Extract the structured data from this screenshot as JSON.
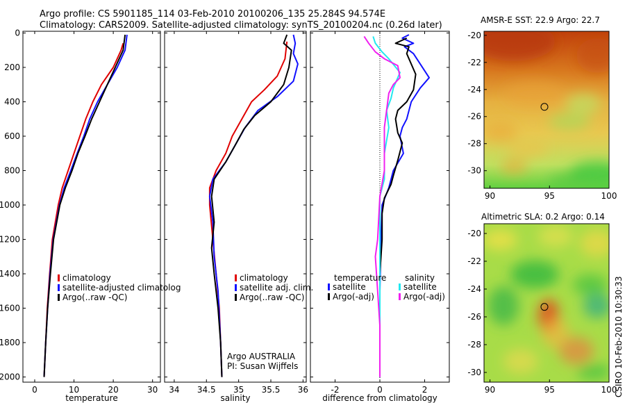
{
  "header": {
    "line1": "Argo profile: CS 5901185_114 03-Feb-2010 20100206_135 25.284S 94.574E",
    "line2": "Climatology: CARS2009. Satellite-adjusted climatology: synTS_20100204.nc (0.26d later)"
  },
  "side_stamp": "CSIRO 10-Feb-2010 10:30:33",
  "colors": {
    "climatology": "#e00000",
    "satellite": "#1010ff",
    "argo": "#000000",
    "sal_satellite": "#22e8f0",
    "sal_argo": "#f020f0"
  },
  "chart_data": [
    {
      "type": "line",
      "xlabel": "temperature",
      "xticks": [
        "0",
        "10",
        "20",
        "30"
      ],
      "yticks": [
        "0",
        "200",
        "400",
        "600",
        "800",
        "1000",
        "1200",
        "1400",
        "1600",
        "1800",
        "2000"
      ],
      "xlim": [
        -3,
        32
      ],
      "ylim": [
        -10,
        2030
      ],
      "legend": [
        "climatology",
        "satellite-adjusted climatolog",
        "Argo(..raw -QC)"
      ],
      "series": [
        {
          "role": "climatology",
          "points": [
            [
              22.5,
              60
            ],
            [
              22,
              100
            ],
            [
              20,
              200
            ],
            [
              17,
              300
            ],
            [
              14.8,
              400
            ],
            [
              13,
              500
            ],
            [
              11.5,
              600
            ],
            [
              10,
              700
            ],
            [
              8.5,
              800
            ],
            [
              7,
              900
            ],
            [
              6,
              1000
            ],
            [
              4.5,
              1200
            ],
            [
              3.8,
              1400
            ],
            [
              3.2,
              1600
            ],
            [
              2.8,
              1800
            ],
            [
              2.4,
              2000
            ]
          ]
        },
        {
          "role": "satellite",
          "points": [
            [
              23.5,
              10
            ],
            [
              23,
              100
            ],
            [
              21,
              200
            ],
            [
              18.5,
              300
            ],
            [
              16,
              400
            ],
            [
              14,
              500
            ],
            [
              12.5,
              600
            ],
            [
              10.8,
              700
            ],
            [
              9.2,
              800
            ],
            [
              7.5,
              900
            ],
            [
              6.3,
              1000
            ],
            [
              4.7,
              1200
            ],
            [
              3.9,
              1400
            ],
            [
              3.3,
              1600
            ],
            [
              2.8,
              1800
            ],
            [
              2.4,
              2000
            ]
          ]
        },
        {
          "role": "argo",
          "points": [
            [
              23,
              10
            ],
            [
              22.5,
              100
            ],
            [
              20.5,
              200
            ],
            [
              18.5,
              300
            ],
            [
              16.5,
              400
            ],
            [
              14.5,
              500
            ],
            [
              12.8,
              600
            ],
            [
              11,
              700
            ],
            [
              9.5,
              800
            ],
            [
              7.8,
              900
            ],
            [
              6.4,
              1000
            ],
            [
              4.8,
              1200
            ],
            [
              4,
              1400
            ],
            [
              3.3,
              1600
            ],
            [
              2.8,
              1800
            ],
            [
              2.4,
              2000
            ]
          ]
        }
      ]
    },
    {
      "type": "line",
      "xlabel": "salinity",
      "xticks": [
        "34",
        "34.5",
        "35",
        "35.5",
        "36"
      ],
      "yticks": [],
      "xlim": [
        33.85,
        36.05
      ],
      "ylim": [
        -10,
        2030
      ],
      "legend": [
        "climatology",
        "satellite adj. clim.",
        "Argo(..raw -QC)"
      ],
      "annotation": [
        "Argo AUSTRALIA",
        "PI: Susan Wijffels"
      ],
      "series": [
        {
          "role": "climatology",
          "points": [
            [
              35.75,
              50
            ],
            [
              35.72,
              150
            ],
            [
              35.6,
              250
            ],
            [
              35.4,
              330
            ],
            [
              35.2,
              400
            ],
            [
              35.05,
              500
            ],
            [
              34.9,
              600
            ],
            [
              34.8,
              700
            ],
            [
              34.65,
              800
            ],
            [
              34.55,
              900
            ],
            [
              34.55,
              1000
            ],
            [
              34.6,
              1200
            ],
            [
              34.65,
              1400
            ],
            [
              34.7,
              1600
            ],
            [
              34.72,
              1800
            ],
            [
              34.74,
              2000
            ]
          ]
        },
        {
          "role": "satellite",
          "points": [
            [
              35.85,
              10
            ],
            [
              35.88,
              60
            ],
            [
              35.85,
              120
            ],
            [
              35.92,
              180
            ],
            [
              35.85,
              280
            ],
            [
              35.6,
              370
            ],
            [
              35.3,
              450
            ],
            [
              35.1,
              550
            ],
            [
              34.95,
              650
            ],
            [
              34.8,
              750
            ],
            [
              34.6,
              850
            ],
            [
              34.55,
              950
            ],
            [
              34.6,
              1100
            ],
            [
              34.62,
              1300
            ],
            [
              34.68,
              1500
            ],
            [
              34.72,
              1800
            ],
            [
              34.74,
              2000
            ]
          ]
        },
        {
          "role": "argo",
          "points": [
            [
              35.75,
              10
            ],
            [
              35.7,
              60
            ],
            [
              35.82,
              100
            ],
            [
              35.78,
              200
            ],
            [
              35.7,
              300
            ],
            [
              35.5,
              400
            ],
            [
              35.25,
              480
            ],
            [
              35.08,
              560
            ],
            [
              34.95,
              650
            ],
            [
              34.8,
              750
            ],
            [
              34.62,
              850
            ],
            [
              34.58,
              950
            ],
            [
              34.62,
              1100
            ],
            [
              34.58,
              1250
            ],
            [
              34.62,
              1400
            ],
            [
              34.68,
              1600
            ],
            [
              34.72,
              1800
            ],
            [
              34.74,
              2000
            ]
          ]
        }
      ]
    },
    {
      "type": "line",
      "xlabel": "difference from climatology",
      "xticks": [
        "-2",
        "0",
        "2"
      ],
      "yticks": [],
      "xlim": [
        -3.1,
        3.1
      ],
      "ylim": [
        -10,
        2030
      ],
      "legend_left_title": "temperature",
      "legend_left": [
        "satellite",
        "Argo(-adj)"
      ],
      "legend_right_title": "salinity",
      "legend_right": [
        "satellite",
        "Argo(-adj)"
      ],
      "series": [
        {
          "role": "temp_satellite",
          "points": [
            [
              1.3,
              10
            ],
            [
              1.0,
              30
            ],
            [
              1.5,
              60
            ],
            [
              1.1,
              80
            ],
            [
              1.5,
              120
            ],
            [
              2.2,
              260
            ],
            [
              1.8,
              320
            ],
            [
              1.4,
              400
            ],
            [
              1.2,
              500
            ],
            [
              1.0,
              550
            ],
            [
              0.9,
              600
            ],
            [
              1.05,
              700
            ],
            [
              0.6,
              800
            ],
            [
              0.4,
              900
            ],
            [
              0.1,
              1000
            ],
            [
              0.05,
              1200
            ],
            [
              0,
              1500
            ],
            [
              0,
              1800
            ],
            [
              0,
              2000
            ]
          ]
        },
        {
          "role": "temp_argo",
          "points": [
            [
              1.2,
              30
            ],
            [
              0.7,
              60
            ],
            [
              1.3,
              80
            ],
            [
              1.2,
              120
            ],
            [
              1.6,
              240
            ],
            [
              1.5,
              330
            ],
            [
              1.2,
              400
            ],
            [
              0.8,
              450
            ],
            [
              0.7,
              500
            ],
            [
              0.8,
              580
            ],
            [
              1.0,
              640
            ],
            [
              0.8,
              740
            ],
            [
              0.6,
              830
            ],
            [
              0.5,
              880
            ],
            [
              0.2,
              960
            ],
            [
              0.1,
              1050
            ],
            [
              0.1,
              1200
            ],
            [
              0,
              1400
            ],
            [
              0,
              1700
            ],
            [
              0,
              2000
            ]
          ]
        },
        {
          "role": "sal_satellite",
          "points": [
            [
              -0.3,
              20
            ],
            [
              -0.2,
              60
            ],
            [
              0.1,
              110
            ],
            [
              0.4,
              150
            ],
            [
              0.9,
              230
            ],
            [
              0.6,
              320
            ],
            [
              0.5,
              380
            ],
            [
              0.3,
              450
            ],
            [
              0.4,
              550
            ],
            [
              0.2,
              700
            ],
            [
              0.2,
              850
            ],
            [
              0,
              950
            ],
            [
              0,
              1200
            ],
            [
              0,
              1500
            ],
            [
              0,
              1800
            ],
            [
              0,
              2000
            ]
          ]
        },
        {
          "role": "sal_argo",
          "points": [
            [
              -0.7,
              20
            ],
            [
              -0.5,
              60
            ],
            [
              -0.2,
              110
            ],
            [
              0.2,
              150
            ],
            [
              0.8,
              190
            ],
            [
              0.9,
              260
            ],
            [
              0.6,
              300
            ],
            [
              0.4,
              350
            ],
            [
              0.3,
              450
            ],
            [
              0.2,
              550
            ],
            [
              0.2,
              650
            ],
            [
              0.2,
              800
            ],
            [
              0,
              950
            ],
            [
              -0.1,
              1200
            ],
            [
              -0.2,
              1300
            ],
            [
              -0.1,
              1500
            ],
            [
              0,
              1700
            ],
            [
              0,
              2000
            ]
          ]
        }
      ]
    },
    {
      "type": "heatmap",
      "title": "AMSR-E SST: 22.9 Argo: 22.7",
      "xticks": [
        "90",
        "95",
        "100"
      ],
      "yticks": [
        "-20",
        "-22",
        "-24",
        "-26",
        "-28",
        "-30"
      ],
      "xlim": [
        89.5,
        100
      ],
      "ylim": [
        -31.3,
        -19.7
      ],
      "marker": {
        "lon": 94.574,
        "lat": -25.284
      }
    },
    {
      "type": "heatmap",
      "title": "Altimetric SLA: 0.2 Argo: 0.14",
      "xticks": [
        "90",
        "95",
        "100"
      ],
      "yticks": [
        "-20",
        "-22",
        "-24",
        "-26",
        "-28",
        "-30"
      ],
      "xlim": [
        89.5,
        100
      ],
      "ylim": [
        -30.7,
        -19.3
      ],
      "marker": {
        "lon": 94.574,
        "lat": -25.284
      }
    }
  ]
}
